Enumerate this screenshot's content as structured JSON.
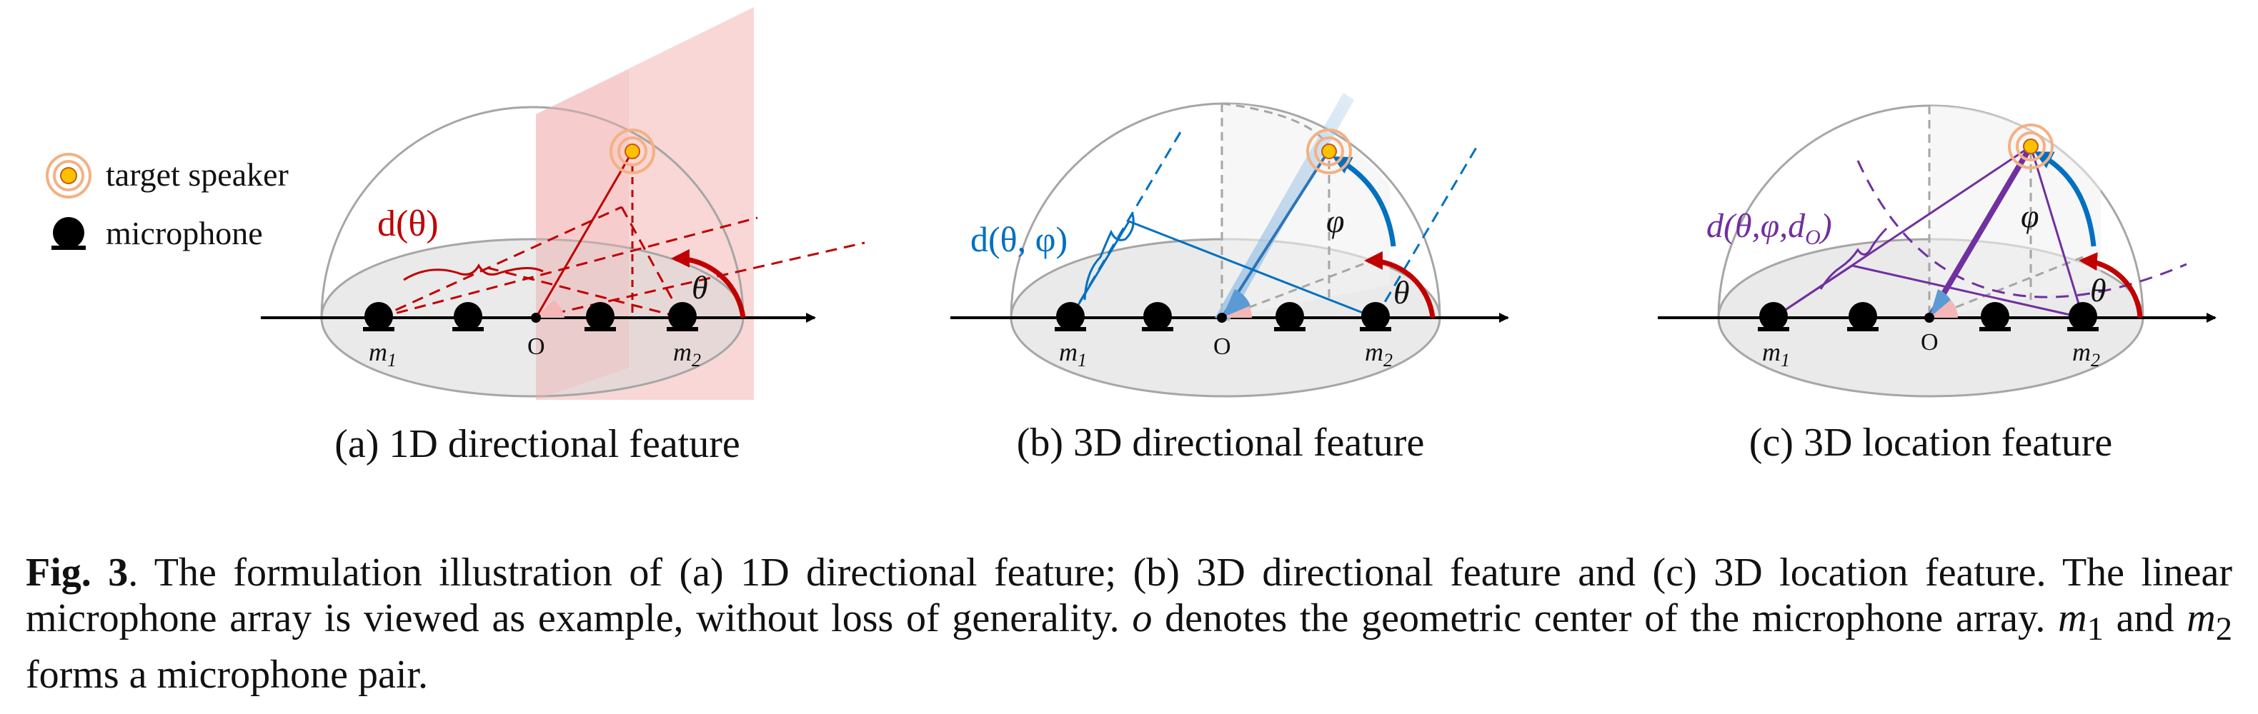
{
  "legend": {
    "speaker_label": "target speaker",
    "microphone_label": "microphone"
  },
  "panels": [
    {
      "caption": "(a) 1D directional feature",
      "feature_label": "d(θ)",
      "m1": "m",
      "m1_sub": "1",
      "m2": "m",
      "m2_sub": "2",
      "origin": "O",
      "theta": "θ"
    },
    {
      "caption": "(b) 3D directional feature",
      "feature_label": "d(θ, φ)",
      "m1": "m",
      "m1_sub": "1",
      "m2": "m",
      "m2_sub": "2",
      "origin": "O",
      "theta": "θ",
      "phi": "φ"
    },
    {
      "caption": "(c) 3D location feature",
      "feature_label": "d(θ,φ,d",
      "feature_sub": "O",
      "feature_close": ")",
      "m1": "m",
      "m1_sub": "1",
      "m2": "m",
      "m2_sub": "2",
      "origin": "O",
      "theta": "θ",
      "phi": "φ"
    }
  ],
  "caption": {
    "fig_label": "Fig. 3",
    "t1": ". The formulation illustration of (a) 1D directional feature; (b) 3D directional feature and (c) 3D location feature. The linear microphone array is viewed as example, without loss of generality. ",
    "o": "o",
    "t2": " denotes the geometric center of the microphone array. ",
    "m1": "m",
    "m1_sub": "1",
    "t3": " and ",
    "m2": "m",
    "m2_sub": "2",
    "t4": " forms a microphone pair."
  },
  "colors": {
    "red": "#c00000",
    "blue": "#0070c0",
    "purple": "#7030a0",
    "speaker": "#ffc000",
    "speaker_ring": "#f4b183"
  }
}
